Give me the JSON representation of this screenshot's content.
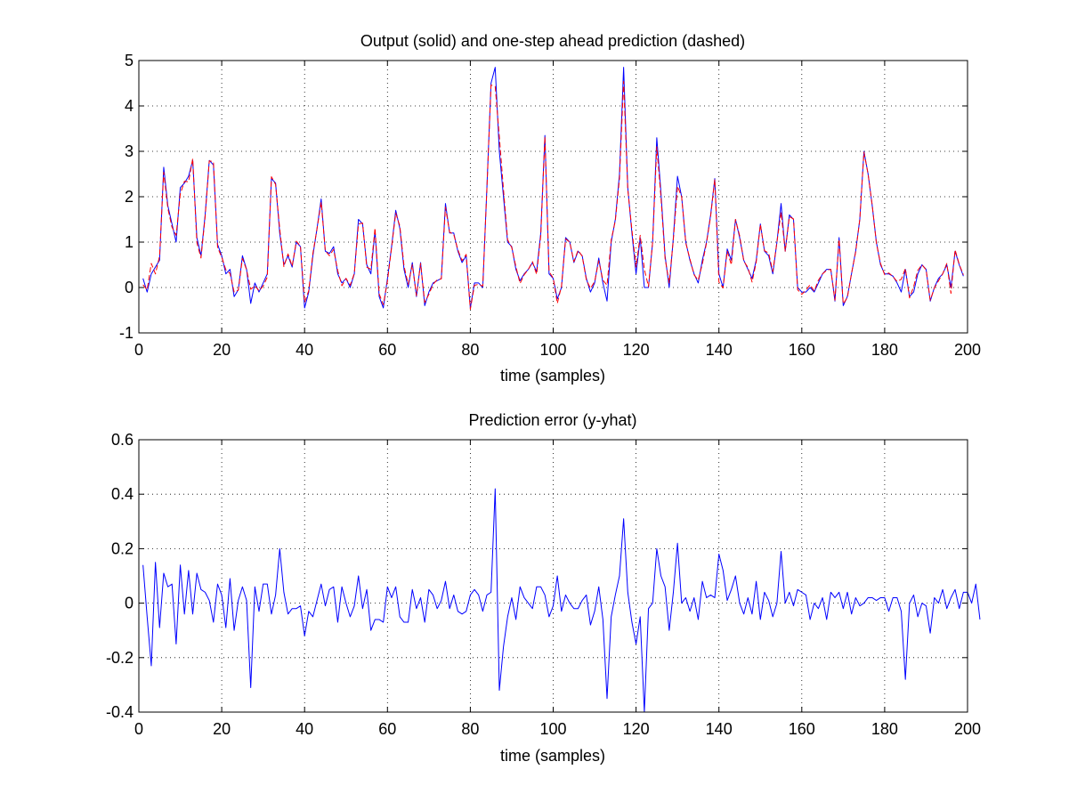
{
  "colors": {
    "output_line": "#0000ff",
    "prediction_line": "#ff0000",
    "error_line": "#0000ff",
    "background": "#ffffff",
    "axes": "#000000"
  },
  "chart_data": [
    {
      "type": "line",
      "title": "Output (solid) and one-step ahead prediction (dashed)",
      "xlabel": "time (samples)",
      "ylabel": "",
      "xlim": [
        0,
        200
      ],
      "ylim": [
        -1,
        5
      ],
      "xticks": [
        "0",
        "20",
        "40",
        "60",
        "80",
        "100",
        "120",
        "140",
        "160",
        "180",
        "200"
      ],
      "yticks": [
        "-1",
        "0",
        "1",
        "2",
        "3",
        "4",
        "5"
      ],
      "grid": true,
      "x_start": 1,
      "series": [
        {
          "style": "solid",
          "color": "#0000ff",
          "values": [
            0.2,
            -0.1,
            0.3,
            0.45,
            0.6,
            2.65,
            1.8,
            1.4,
            1.0,
            2.2,
            2.3,
            2.45,
            2.8,
            1.1,
            0.7,
            1.6,
            2.8,
            2.7,
            0.95,
            0.7,
            0.3,
            0.4,
            -0.2,
            -0.05,
            0.7,
            0.4,
            -0.35,
            0.1,
            -0.1,
            0.1,
            0.3,
            2.4,
            2.3,
            1.2,
            0.5,
            0.7,
            0.45,
            1.0,
            0.9,
            -0.45,
            -0.1,
            0.7,
            1.3,
            1.95,
            0.8,
            0.75,
            0.9,
            0.3,
            0.1,
            0.2,
            0.0,
            0.3,
            1.5,
            1.4,
            0.5,
            0.3,
            1.25,
            -0.2,
            -0.45,
            0.2,
            0.9,
            1.7,
            1.3,
            0.4,
            0.0,
            0.55,
            -0.2,
            0.55,
            -0.4,
            -0.1,
            0.1,
            0.15,
            0.2,
            1.85,
            1.2,
            1.2,
            0.8,
            0.55,
            0.7,
            -0.45,
            0.1,
            0.1,
            0.0,
            2.2,
            4.5,
            4.85,
            3.0,
            2.0,
            1.0,
            0.9,
            0.4,
            0.15,
            0.3,
            0.4,
            0.55,
            0.35,
            1.2,
            3.35,
            0.3,
            0.2,
            -0.25,
            0.0,
            1.1,
            1.0,
            0.55,
            0.8,
            0.7,
            0.2,
            -0.1,
            0.1,
            0.65,
            0.1,
            -0.3,
            1.0,
            1.5,
            2.5,
            4.85,
            2.2,
            1.2,
            0.3,
            1.1,
            0.0,
            0.0,
            1.0,
            3.3,
            2.1,
            0.7,
            0.0,
            1.1,
            2.45,
            2.0,
            1.0,
            0.6,
            0.3,
            0.1,
            0.6,
            1.0,
            1.6,
            2.4,
            0.3,
            0.0,
            0.85,
            0.6,
            1.5,
            1.1,
            0.6,
            0.4,
            0.2,
            0.6,
            1.4,
            0.8,
            0.7,
            0.3,
            1.0,
            1.85,
            0.8,
            1.6,
            1.5,
            0.0,
            -0.1,
            -0.1,
            0.0,
            -0.1,
            0.1,
            0.3,
            0.4,
            0.4,
            -0.3,
            1.1,
            -0.4,
            -0.2,
            0.3,
            0.8,
            1.5,
            3.0,
            2.5,
            1.8,
            1.0,
            0.5,
            0.3,
            0.3,
            0.25,
            0.1,
            -0.1,
            0.4,
            -0.2,
            -0.1,
            0.3,
            0.5,
            0.4,
            -0.3,
            0.0,
            0.2,
            0.3,
            0.5,
            0.0,
            0.8,
            0.5,
            0.25
          ]
        },
        {
          "style": "dashed",
          "color": "#ff0000",
          "values": [
            0.06,
            -0.05,
            0.53,
            0.3,
            0.69,
            2.54,
            1.74,
            1.33,
            1.15,
            2.06,
            2.34,
            2.33,
            2.84,
            0.99,
            0.65,
            1.56,
            2.79,
            2.77,
            0.88,
            0.67,
            0.39,
            0.31,
            -0.1,
            -0.06,
            0.64,
            0.39,
            -0.04,
            0.04,
            -0.07,
            0.03,
            0.23,
            2.44,
            2.27,
            1.29,
            0.46,
            0.74,
            0.47,
            1.02,
            0.91,
            -0.33,
            -0.07,
            0.75,
            1.29,
            1.88,
            0.81,
            0.7,
            0.84,
            0.37,
            0.04,
            0.2,
            0.05,
            0.31,
            1.4,
            1.42,
            0.45,
            0.4,
            1.31,
            -0.14,
            -0.38,
            0.14,
            0.88,
            1.64,
            1.35,
            0.47,
            0.07,
            0.5,
            -0.18,
            0.53,
            -0.33,
            -0.15,
            0.07,
            0.17,
            0.19,
            1.77,
            1.22,
            1.17,
            0.83,
            0.59,
            0.73,
            -0.48,
            0.05,
            0.07,
            0.03,
            2.17,
            4.46,
            4.43,
            3.32,
            2.16,
            1.05,
            0.88,
            0.46,
            0.09,
            0.28,
            0.4,
            0.57,
            0.29,
            1.14,
            3.32,
            0.35,
            0.21,
            -0.35,
            0.03,
            1.07,
            1.0,
            0.57,
            0.82,
            0.69,
            0.17,
            -0.02,
            0.13,
            0.59,
            0.16,
            0.05,
            1.05,
            1.47,
            2.4,
            4.54,
            2.16,
            1.27,
            0.45,
            1.15,
            0.4,
            0.02,
            1.0,
            3.1,
            2.0,
            0.64,
            0.1,
            1.06,
            2.23,
            2.0,
            0.98,
            0.63,
            0.28,
            0.16,
            0.52,
            0.98,
            1.57,
            2.38,
            0.12,
            -0.01,
            0.8,
            0.5,
            1.5,
            1.14,
            0.58,
            0.44,
            0.12,
            0.56,
            1.39,
            0.81,
            0.76,
            0.35,
            1.0,
            1.66,
            0.8,
            1.56,
            1.51,
            -0.05,
            -0.15,
            -0.06,
            0.06,
            -0.08,
            0.16,
            0.3,
            0.38,
            0.4,
            -0.28,
            1.06,
            -0.36,
            -0.22,
            0.31,
            0.78,
            1.5,
            2.98,
            2.5,
            1.81,
            0.98,
            0.53,
            0.28,
            0.32,
            0.24,
            0.13,
            0.18,
            0.42,
            -0.23,
            0.02,
            0.38,
            0.5,
            0.39,
            -0.28,
            -0.01,
            0.15,
            0.3,
            0.53,
            -0.13,
            0.83,
            0.51,
            0.28
          ]
        }
      ]
    },
    {
      "type": "line",
      "title": "Prediction error (y-yhat)",
      "xlabel": "time (samples)",
      "ylabel": "",
      "xlim": [
        0,
        200
      ],
      "ylim": [
        -0.4,
        0.6
      ],
      "xticks": [
        "0",
        "20",
        "40",
        "60",
        "80",
        "100",
        "120",
        "140",
        "160",
        "180",
        "200"
      ],
      "yticks": [
        "-0.4",
        "-0.2",
        "0",
        "0.2",
        "0.4",
        "0.6"
      ],
      "grid": true,
      "x_start": 1,
      "series": [
        {
          "style": "solid",
          "color": "#0000ff",
          "values": [
            0.14,
            -0.05,
            -0.23,
            0.15,
            -0.09,
            0.11,
            0.06,
            0.07,
            -0.15,
            0.14,
            -0.04,
            0.12,
            -0.04,
            0.11,
            0.05,
            0.04,
            0.01,
            -0.07,
            0.07,
            0.03,
            -0.09,
            0.09,
            -0.1,
            0.01,
            0.06,
            0.01,
            -0.31,
            0.06,
            -0.03,
            0.07,
            0.07,
            -0.04,
            0.03,
            0.2,
            0.04,
            -0.04,
            -0.02,
            -0.02,
            -0.01,
            -0.12,
            -0.03,
            -0.05,
            0.01,
            0.07,
            -0.01,
            0.05,
            0.06,
            -0.07,
            0.06,
            0.0,
            -0.05,
            -0.01,
            0.1,
            -0.02,
            0.05,
            -0.1,
            -0.06,
            -0.06,
            -0.07,
            0.06,
            0.02,
            0.06,
            -0.05,
            -0.07,
            -0.07,
            0.05,
            -0.02,
            0.02,
            -0.07,
            0.05,
            0.03,
            -0.02,
            0.01,
            0.08,
            -0.02,
            0.03,
            -0.03,
            -0.04,
            -0.03,
            0.03,
            0.05,
            0.03,
            -0.03,
            0.03,
            0.04,
            0.42,
            -0.32,
            -0.16,
            -0.05,
            0.02,
            -0.06,
            0.06,
            0.02,
            0.0,
            -0.02,
            0.06,
            0.06,
            0.03,
            -0.05,
            -0.01,
            0.1,
            -0.03,
            0.03,
            0.0,
            -0.02,
            -0.02,
            0.01,
            0.03,
            -0.08,
            -0.03,
            0.06,
            -0.06,
            -0.35,
            -0.05,
            0.03,
            0.1,
            0.31,
            0.04,
            -0.07,
            -0.15,
            -0.05,
            -0.4,
            -0.02,
            0.0,
            0.2,
            0.1,
            0.06,
            -0.1,
            0.04,
            0.22,
            0.0,
            0.02,
            -0.03,
            0.02,
            -0.06,
            0.08,
            0.02,
            0.03,
            0.02,
            0.18,
            0.12,
            0.01,
            0.05,
            0.1,
            0.0,
            -0.04,
            0.02,
            -0.04,
            0.08,
            -0.06,
            0.04,
            0.01,
            -0.05,
            0.0,
            0.19,
            0.0,
            0.04,
            -0.01,
            0.05,
            0.04,
            0.03,
            -0.06,
            0.0,
            -0.02,
            0.02,
            -0.06,
            0.04,
            0.02,
            0.04,
            -0.02,
            0.04,
            -0.04,
            0.02,
            -0.01,
            0.0,
            0.02,
            0.02,
            0.01,
            0.02,
            0.02,
            -0.03,
            0.02,
            0.02,
            -0.03,
            -0.28,
            0.0,
            0.03,
            -0.05,
            0.0,
            -0.01,
            -0.11,
            0.02,
            0.0,
            0.05,
            -0.02,
            0.02,
            0.05,
            -0.02,
            0.04,
            0.04,
            0.0,
            0.07,
            -0.06
          ]
        }
      ]
    }
  ]
}
